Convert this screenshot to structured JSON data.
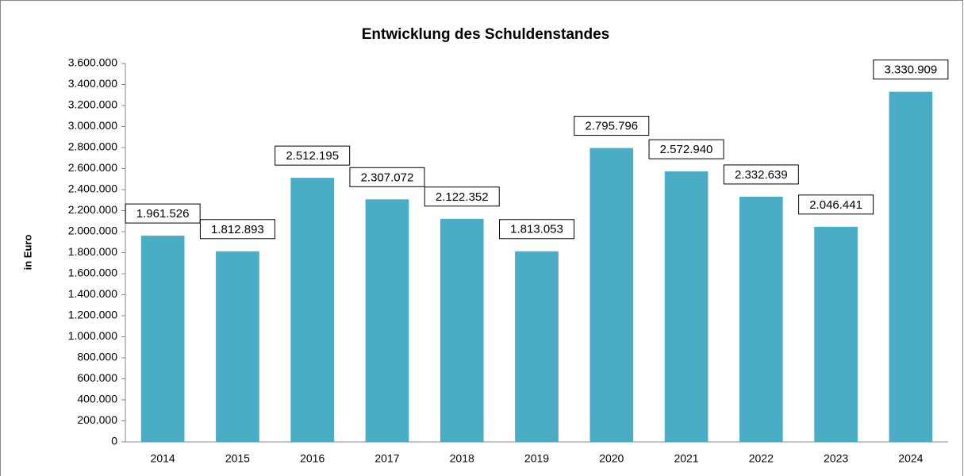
{
  "chart_data": {
    "type": "bar",
    "title": "Entwicklung des Schuldenstandes",
    "y_label": "in Euro",
    "categories": [
      "2014",
      "2015",
      "2016",
      "2017",
      "2018",
      "2019",
      "2020",
      "2021",
      "2022",
      "2023",
      "2024"
    ],
    "values": [
      1961526,
      1812893,
      2512195,
      2307072,
      2122352,
      1813053,
      2795796,
      2572940,
      2332639,
      2046441,
      3330909
    ],
    "value_labels": [
      "1.961.526",
      "1.812.893",
      "2.512.195",
      "2.307.072",
      "2.122.352",
      "1.813.053",
      "2.795.796",
      "2.572.940",
      "2.332.639",
      "2.046.441",
      "3.330.909"
    ],
    "color": "#4bacc6",
    "ylim": [
      0,
      3600000
    ],
    "yticks": [
      0,
      {
        "value": 200000,
        "label": "200.000"
      },
      {
        "value": 400000,
        "label": "400.000"
      },
      {
        "value": 600000,
        "label": "600.000"
      },
      {
        "value": 800000,
        "label": "800.000"
      },
      {
        "value": 1000000,
        "label": "1.000.000"
      },
      {
        "value": 1200000,
        "label": "1.200.000"
      },
      {
        "value": 1400000,
        "label": "1.400.000"
      },
      {
        "value": 1600000,
        "label": "1.600.000"
      },
      {
        "value": 1800000,
        "label": "1.800.000"
      },
      {
        "value": 2000000,
        "label": "2.000.000"
      },
      {
        "value": 2200000,
        "label": "2.200.000"
      },
      {
        "value": 2400000,
        "label": "2.400.000"
      },
      {
        "value": 2600000,
        "label": "2.600.000"
      },
      {
        "value": 2800000,
        "label": "2.800.000"
      },
      {
        "value": 3000000,
        "label": "3.000.000"
      },
      {
        "value": 3200000,
        "label": "3.200.000"
      },
      {
        "value": 3400000,
        "label": "3.400.000"
      },
      {
        "value": 3600000,
        "label": "3.600.000"
      }
    ],
    "grid": false
  }
}
